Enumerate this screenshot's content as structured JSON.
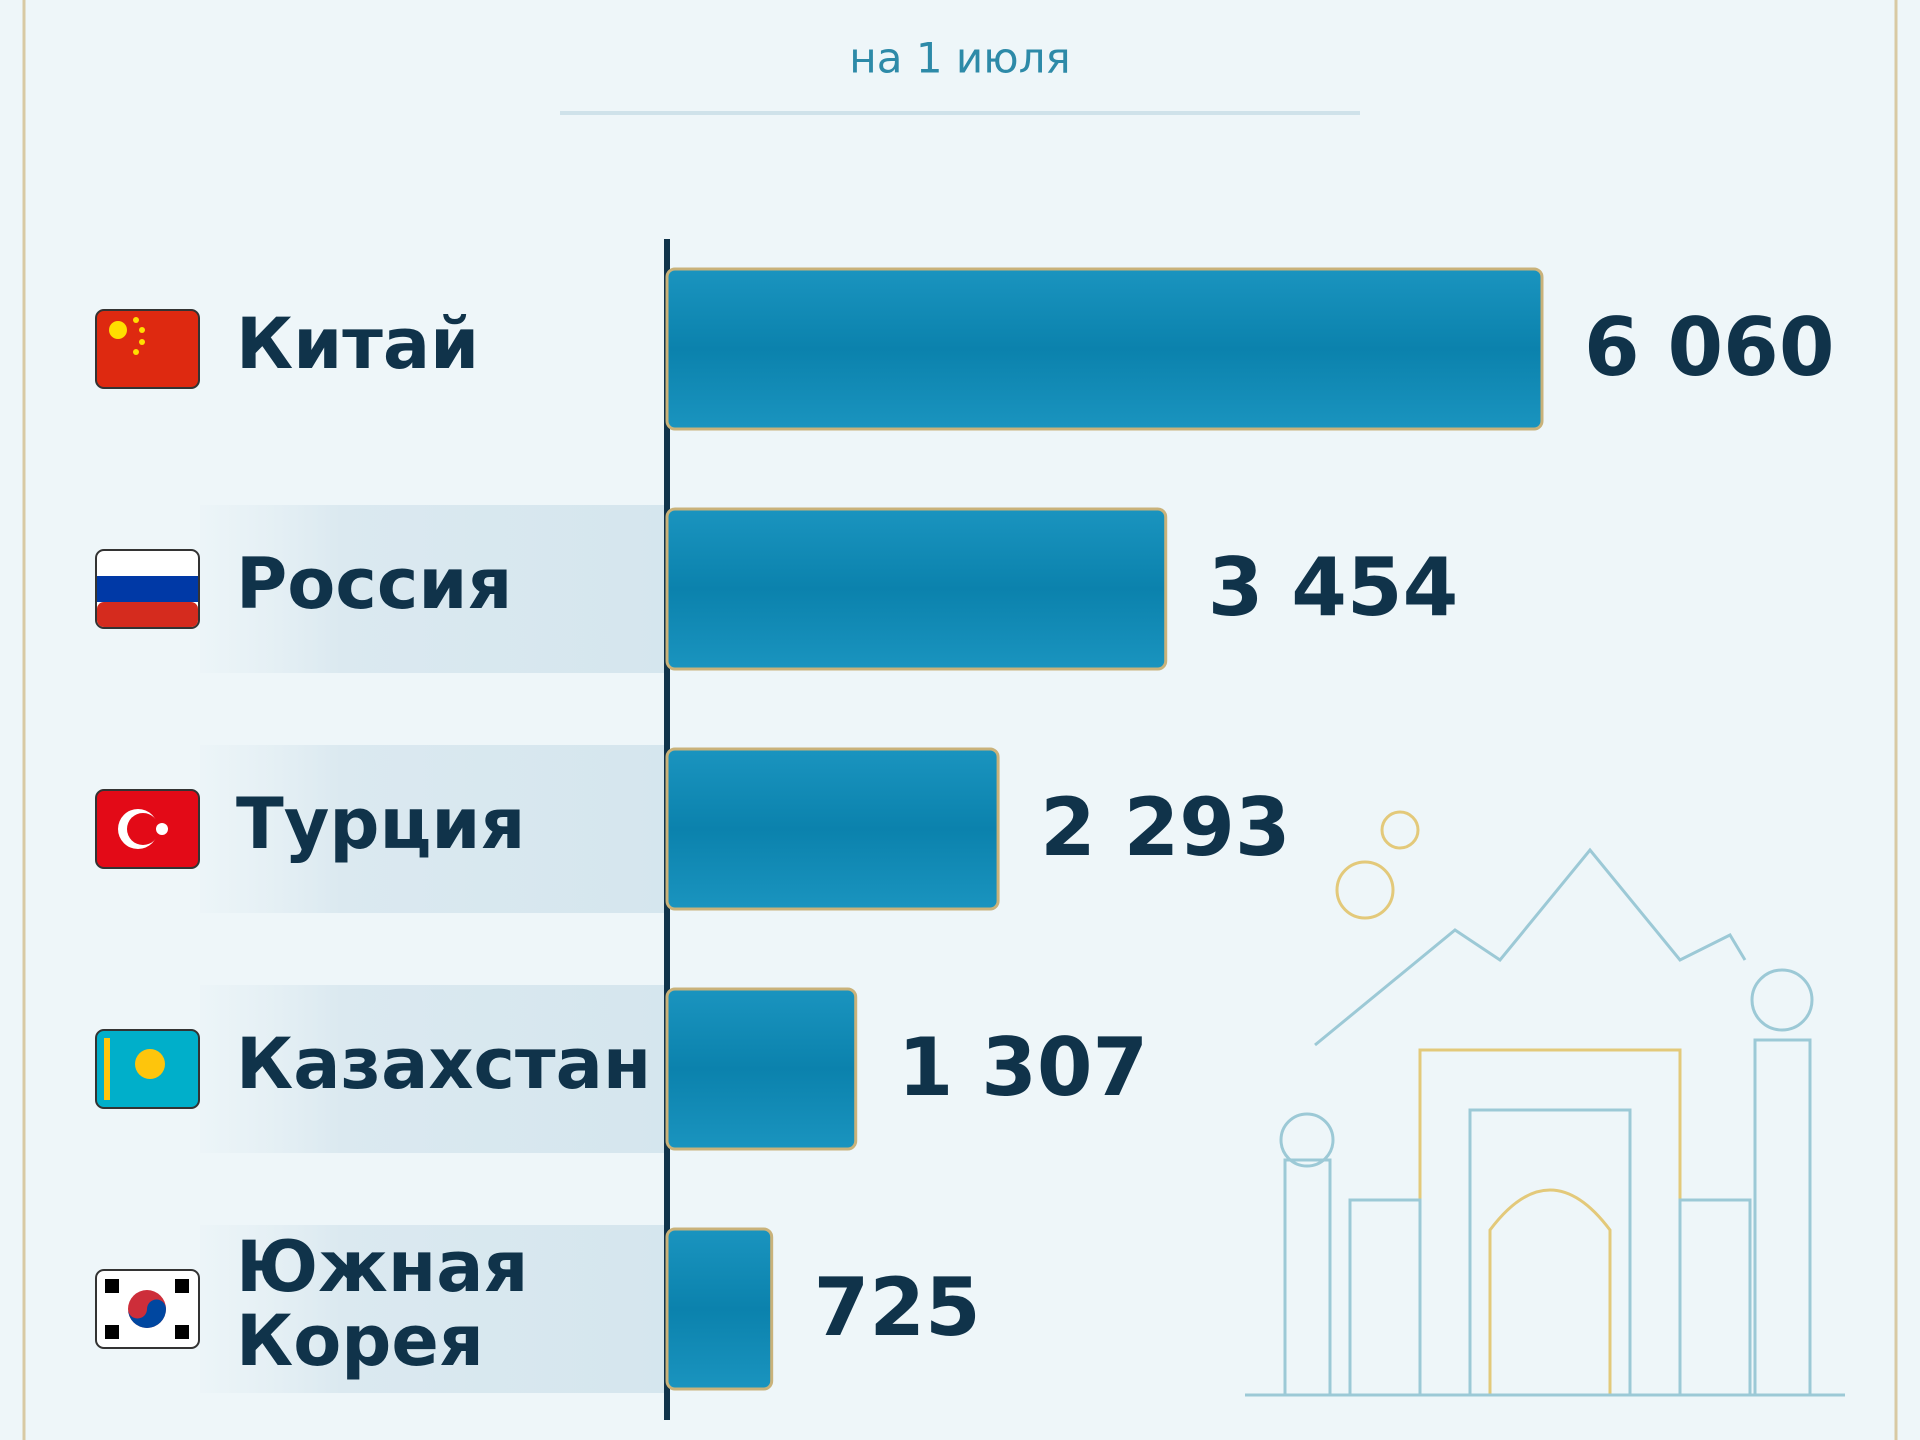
{
  "chart_data": {
    "type": "bar",
    "orientation": "horizontal",
    "subtitle": "на 1 июля",
    "categories": [
      "Китай",
      "Россия",
      "Турция",
      "Казахстан",
      "Южная Корея"
    ],
    "values": [
      6060,
      3454,
      2293,
      1307,
      725
    ],
    "value_labels": [
      "6 060",
      "3 454",
      "2 293",
      "1 307",
      "725"
    ],
    "color": "#0b82ad"
  }
}
